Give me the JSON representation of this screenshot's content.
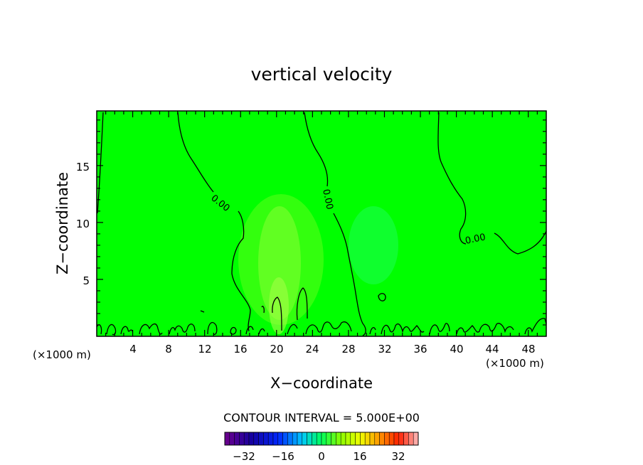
{
  "chart_data": {
    "type": "heatmap",
    "title": "vertical velocity",
    "xlabel": "X−coordinate",
    "ylabel": "Z−coordinate",
    "x_unit": "(×1000 m)",
    "z_unit": "(×1000 m)",
    "xlim": [
      0,
      50
    ],
    "ylim": [
      0,
      19.8
    ],
    "x_ticks": [
      "4",
      "8",
      "12",
      "16",
      "20",
      "24",
      "28",
      "32",
      "36",
      "40",
      "44",
      "48"
    ],
    "y_ticks": [
      "5",
      "10",
      "15"
    ],
    "contour_labels": [
      "0.00",
      "0.00",
      "0.00"
    ],
    "contour_interval_text": "CONTOUR INTERVAL = 5.000E+00",
    "colorbar": {
      "min": -40,
      "max": 40,
      "step": 2,
      "tick_labels": [
        "−32",
        "−16",
        "0",
        "16",
        "32"
      ]
    },
    "field_colors": {
      "background": "#00ff00",
      "weak_updraft": "#77ff2a",
      "weak_downdraft": "#22ff66"
    }
  }
}
